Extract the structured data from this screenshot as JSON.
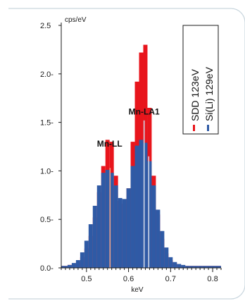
{
  "colors": {
    "frame": "#c9d6de",
    "sdd": "#e8151c",
    "sili": "#2f5aa5",
    "axis": "#1a1a1a",
    "line_highlight": "#cfd8e8",
    "line_ll": "#f2a38a"
  },
  "chart_data": {
    "type": "bar",
    "xlabel": "keV",
    "ylabel": "cps/eV",
    "xlim": [
      0.44,
      0.82
    ],
    "ylim": [
      0,
      2.5
    ],
    "xticks": [
      0.5,
      0.6,
      0.7,
      0.8
    ],
    "xtick_labels": [
      "0.5",
      "0.6",
      "0.7",
      "0.8"
    ],
    "yticks": [
      0.0,
      0.5,
      1.0,
      1.5,
      2.0,
      2.5
    ],
    "ytick_labels": [
      "0.0-",
      "0.5-",
      "1.0-",
      "1.5-",
      "2.0-",
      "2.5"
    ],
    "grid": false,
    "legend_position": "top-right",
    "annotations": [
      {
        "text": "Mn-LL",
        "x": 0.555,
        "y": 1.25
      },
      {
        "text": "Mn-LA1",
        "x": 0.637,
        "y": 1.58
      }
    ],
    "line_markers": [
      {
        "x": 0.556,
        "top": 1.03,
        "kind": "ll"
      },
      {
        "x": 0.637,
        "top": 1.52,
        "kind": "highlight"
      },
      {
        "x": 0.648,
        "top": 1.15,
        "kind": "highlight"
      }
    ],
    "series": [
      {
        "name": "SDD 123eV",
        "x": [
          0.44,
          0.45,
          0.46,
          0.47,
          0.48,
          0.49,
          0.5,
          0.51,
          0.52,
          0.53,
          0.54,
          0.55,
          0.56,
          0.57,
          0.58,
          0.59,
          0.6,
          0.61,
          0.62,
          0.63,
          0.64,
          0.65,
          0.66,
          0.67,
          0.68,
          0.69,
          0.7,
          0.71,
          0.72,
          0.73,
          0.74,
          0.75,
          0.76,
          0.77,
          0.78,
          0.79,
          0.8,
          0.81,
          0.82
        ],
        "values": [
          0.02,
          0.02,
          0.03,
          0.04,
          0.06,
          0.11,
          0.2,
          0.33,
          0.52,
          0.78,
          1.05,
          1.32,
          1.3,
          0.95,
          0.69,
          0.66,
          0.82,
          1.3,
          1.92,
          2.22,
          2.3,
          1.65,
          0.95,
          0.55,
          0.3,
          0.15,
          0.08,
          0.05,
          0.03,
          0.02,
          0.02,
          0.02,
          0.02,
          0.02,
          0.02,
          0.02,
          0.02,
          0.02,
          0.02
        ]
      },
      {
        "name": "Si(Li) 129eV",
        "x": [
          0.44,
          0.45,
          0.46,
          0.47,
          0.48,
          0.49,
          0.5,
          0.51,
          0.52,
          0.53,
          0.54,
          0.55,
          0.56,
          0.57,
          0.58,
          0.59,
          0.6,
          0.61,
          0.62,
          0.63,
          0.64,
          0.65,
          0.66,
          0.67,
          0.68,
          0.69,
          0.7,
          0.71,
          0.72,
          0.73,
          0.74,
          0.75,
          0.76,
          0.77,
          0.78,
          0.79,
          0.8,
          0.81,
          0.82
        ],
        "values": [
          0.02,
          0.02,
          0.03,
          0.05,
          0.08,
          0.16,
          0.28,
          0.45,
          0.64,
          0.85,
          0.98,
          1.01,
          0.98,
          0.85,
          0.72,
          0.71,
          0.82,
          1.05,
          1.26,
          1.32,
          1.29,
          1.1,
          0.85,
          0.6,
          0.38,
          0.21,
          0.11,
          0.06,
          0.04,
          0.03,
          0.02,
          0.02,
          0.02,
          0.02,
          0.02,
          0.02,
          0.02,
          0.02,
          0.02
        ]
      }
    ]
  }
}
